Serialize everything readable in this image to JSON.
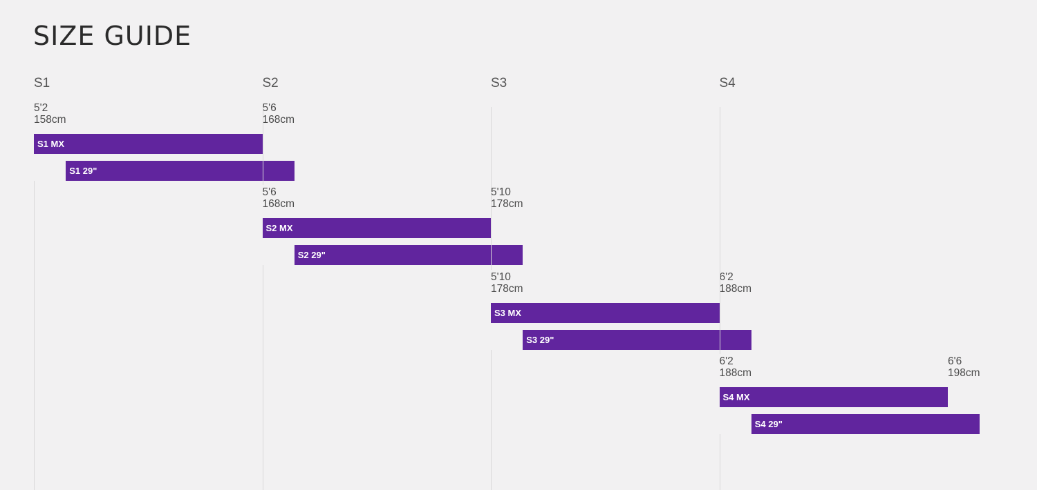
{
  "title": "SIZE GUIDE",
  "accent_color": "#61259e",
  "chart_data": {
    "type": "bar",
    "orientation": "horizontal-range",
    "title": "SIZE GUIDE",
    "columns": [
      "S1",
      "S2",
      "S3",
      "S4"
    ],
    "groups": [
      {
        "size": "S1",
        "min_label": [
          "5'2",
          "158cm"
        ],
        "max_label": [
          "5'6",
          "168cm"
        ],
        "bars": [
          {
            "label": "S1 MX",
            "start_cm": 158,
            "end_cm": 168
          },
          {
            "label": "S1 29\"",
            "start_cm": 159.4,
            "end_cm": 169.4
          }
        ]
      },
      {
        "size": "S2",
        "min_label": [
          "5'6",
          "168cm"
        ],
        "max_label": [
          "5'10",
          "178cm"
        ],
        "bars": [
          {
            "label": "S2 MX",
            "start_cm": 168,
            "end_cm": 178
          },
          {
            "label": "S2 29\"",
            "start_cm": 169.4,
            "end_cm": 179.4
          }
        ]
      },
      {
        "size": "S3",
        "min_label": [
          "5'10",
          "178cm"
        ],
        "max_label": [
          "6'2",
          "188cm"
        ],
        "bars": [
          {
            "label": "S3 MX",
            "start_cm": 178,
            "end_cm": 188
          },
          {
            "label": "S3 29\"",
            "start_cm": 179.4,
            "end_cm": 189.4
          }
        ]
      },
      {
        "size": "S4",
        "min_label": [
          "6'2",
          "188cm"
        ],
        "max_label": [
          "6'6",
          "198cm"
        ],
        "bars": [
          {
            "label": "S4 MX",
            "start_cm": 188,
            "end_cm": 198
          },
          {
            "label": "S4 29\"",
            "start_cm": 189.4,
            "end_cm": 199.4
          }
        ]
      }
    ]
  }
}
